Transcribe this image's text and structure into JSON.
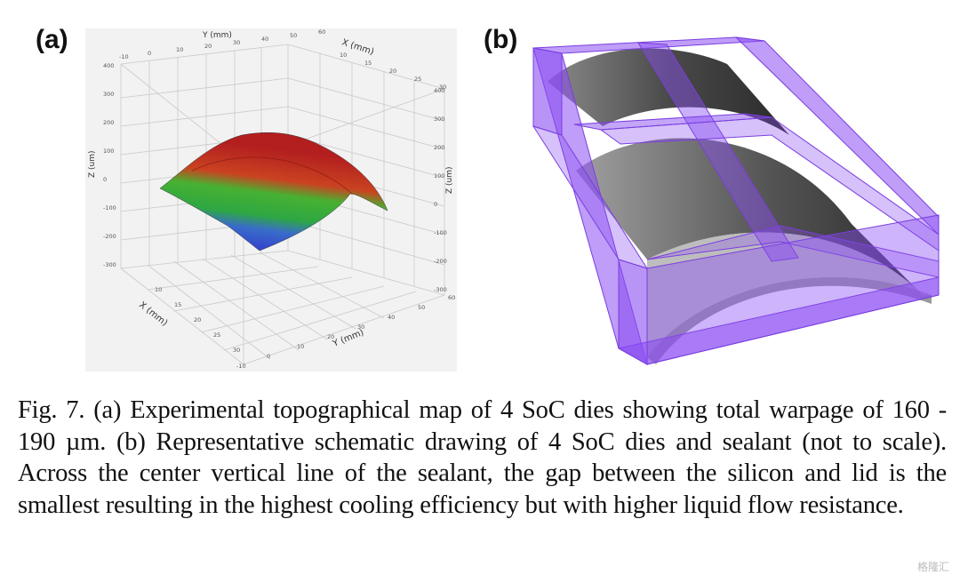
{
  "figure": {
    "panel_a_label": "(a)",
    "panel_b_label": "(b)",
    "caption": "Fig. 7. (a) Experimental topographical map of 4 SoC dies showing total warpage of 160 - 190 µm. (b) Representative schematic drawing of 4 SoC dies and sealant (not to scale). Across the center vertical line of the sealant, the gap between the silicon and lid is the smallest resulting in the highest cooling efficiency but with higher liquid flow resistance."
  },
  "plot3d": {
    "axis_y_top": "Y (mm)",
    "axis_x_top": "X (mm)",
    "axis_z_left": "Z (um)",
    "axis_z_right": "Z (um)",
    "axis_x_bottom": "X (mm)",
    "axis_y_bottom": "Y (mm)",
    "top_y_ticks": [
      "-10",
      "0",
      "10",
      "20",
      "30",
      "40",
      "50",
      "60"
    ],
    "top_x_ticks": [
      "10",
      "15",
      "20",
      "25",
      "30"
    ],
    "left_z_ticks": [
      "400",
      "300",
      "200",
      "100",
      "0",
      "-100",
      "-200",
      "-300"
    ],
    "right_z_ticks": [
      "400",
      "300",
      "200",
      "100",
      "0",
      "-100",
      "-200",
      "-300"
    ],
    "bottom_x_ticks": [
      "10",
      "15",
      "20",
      "25",
      "30"
    ],
    "bottom_y_ticks": [
      "-10",
      "0",
      "10",
      "20",
      "30",
      "40",
      "50",
      "60"
    ],
    "surface_colors": [
      "#c81818",
      "#2bb52b",
      "#2e4fd1"
    ]
  },
  "watermark": "格隆汇"
}
